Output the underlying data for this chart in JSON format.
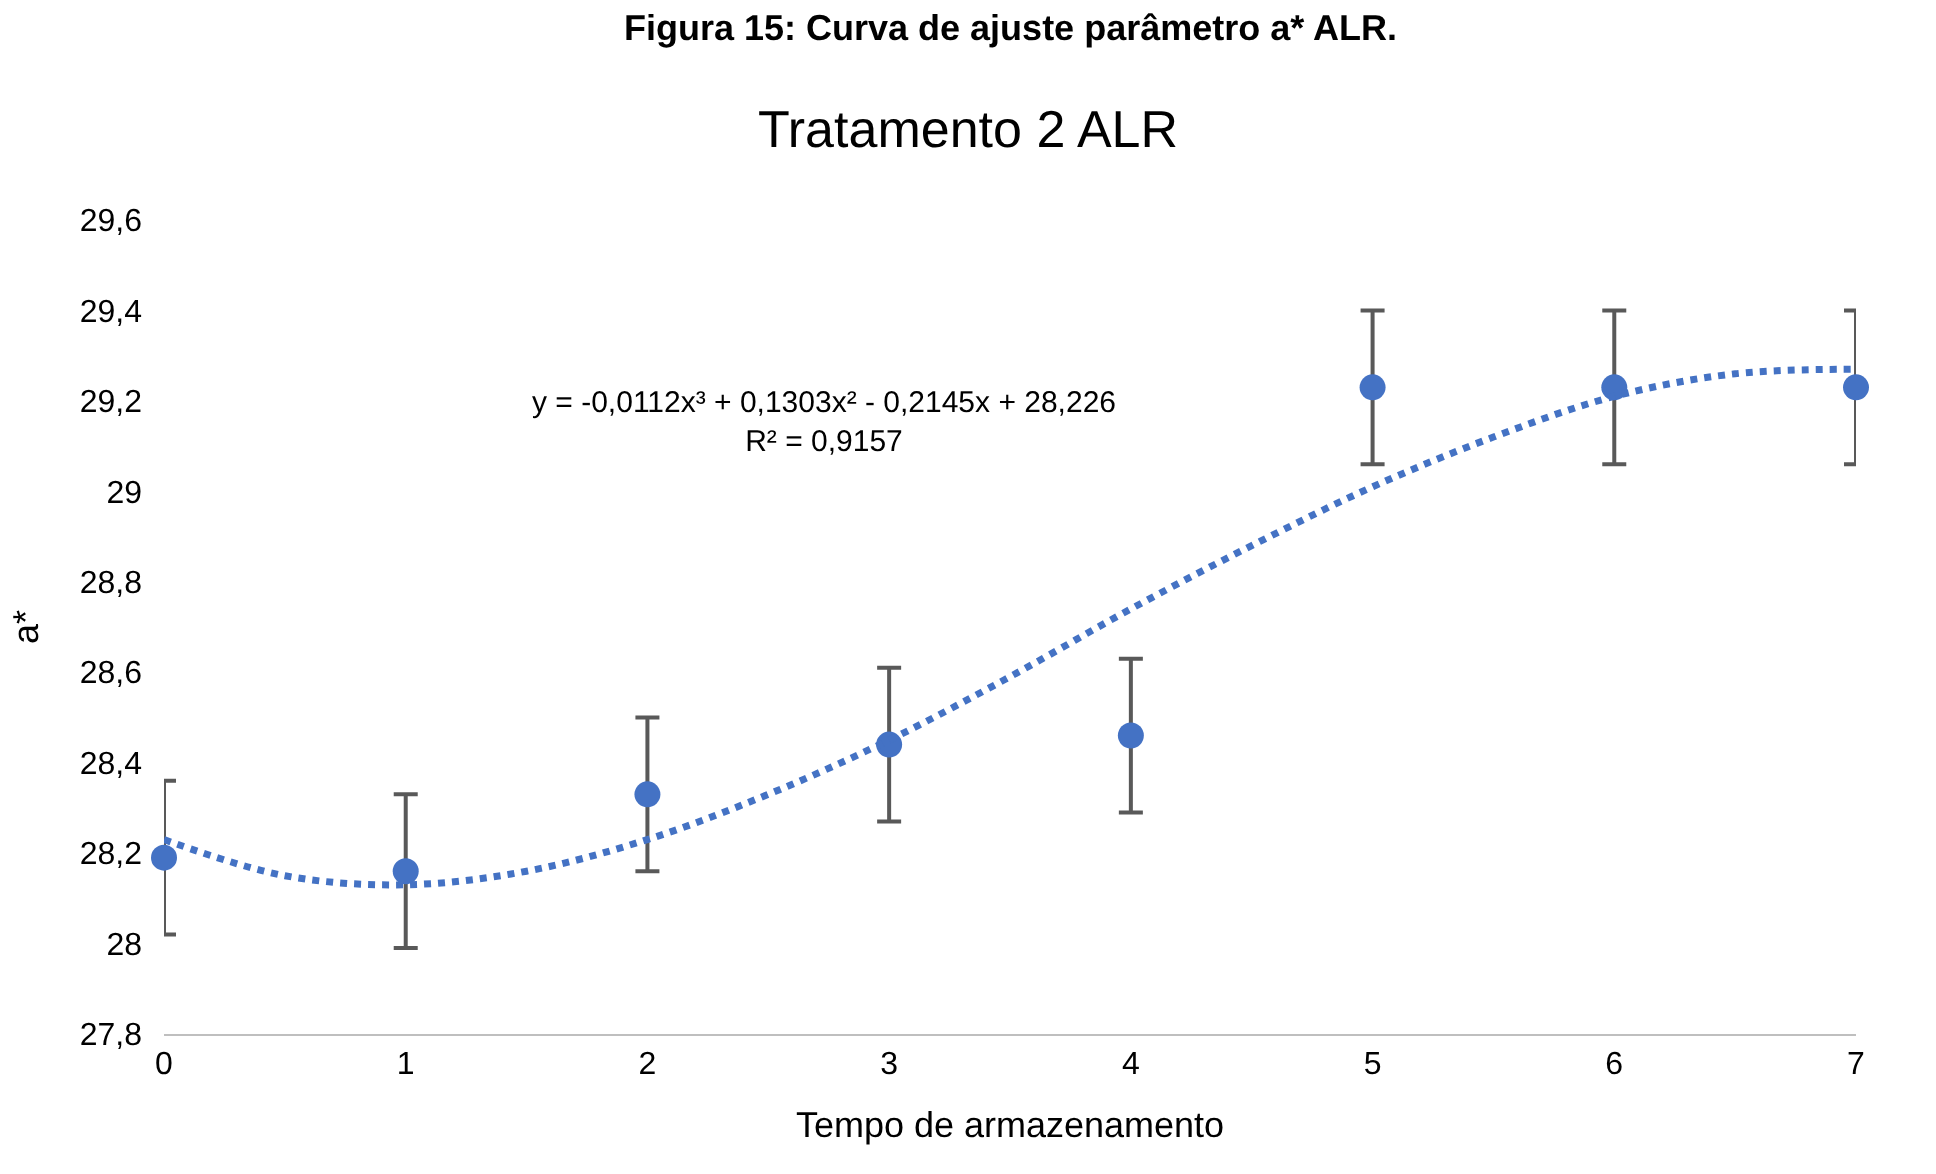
{
  "chart_data": {
    "type": "scatter",
    "title": "Tratamento 2 ALR",
    "xlabel": "Tempo de armazenamento",
    "ylabel": "a*",
    "x": [
      0,
      1,
      2,
      3,
      4,
      5,
      6,
      7
    ],
    "series": [
      {
        "color": "#4472c4",
        "values": [
          28.19,
          28.16,
          28.33,
          28.44,
          28.46,
          29.23,
          29.23,
          29.23
        ],
        "errors": [
          0.17,
          0.17,
          0.17,
          0.17,
          0.17,
          0.17,
          0.17,
          0.17
        ],
        "marker": "circle"
      },
      {
        "type": "line",
        "color": "#4472c4",
        "line_style": "dotted",
        "marker": "none",
        "x": [
          0,
          0.5,
          1,
          1.5,
          2,
          2.5,
          3,
          3.5,
          4,
          4.5,
          5,
          5.5,
          6,
          6.5,
          7
        ],
        "values": [
          28.23,
          28.15,
          28.13,
          28.16,
          28.23,
          28.33,
          28.45,
          28.59,
          28.74,
          28.88,
          29.01,
          29.12,
          29.21,
          29.26,
          29.27
        ]
      }
    ],
    "annotations": [
      "Figura 15: Curva de ajuste parâmetro a* ALR.",
      "y = -0,0112x³ + 0,1303x² - 0,2145x + 28,226\nR² = 0,9157"
    ],
    "xlim": [
      0,
      7
    ],
    "xticks": [
      0,
      1,
      2,
      3,
      4,
      5,
      6,
      7
    ],
    "ylim": [
      27.8,
      29.6
    ],
    "yticks": [
      {
        "value": 27.8,
        "label": "27,8"
      },
      {
        "value": 28,
        "label": "28"
      },
      {
        "value": 28.2,
        "label": "28,2"
      },
      {
        "value": 28.4,
        "label": "28,4"
      },
      {
        "value": 28.6,
        "label": "28,6"
      },
      {
        "value": 28.8,
        "label": "28,8"
      },
      {
        "value": 29,
        "label": "29"
      },
      {
        "value": 29.2,
        "label": "29,2"
      },
      {
        "value": 29.4,
        "label": "29,4"
      },
      {
        "value": 29.6,
        "label": "29,6"
      }
    ],
    "grid": false
  }
}
